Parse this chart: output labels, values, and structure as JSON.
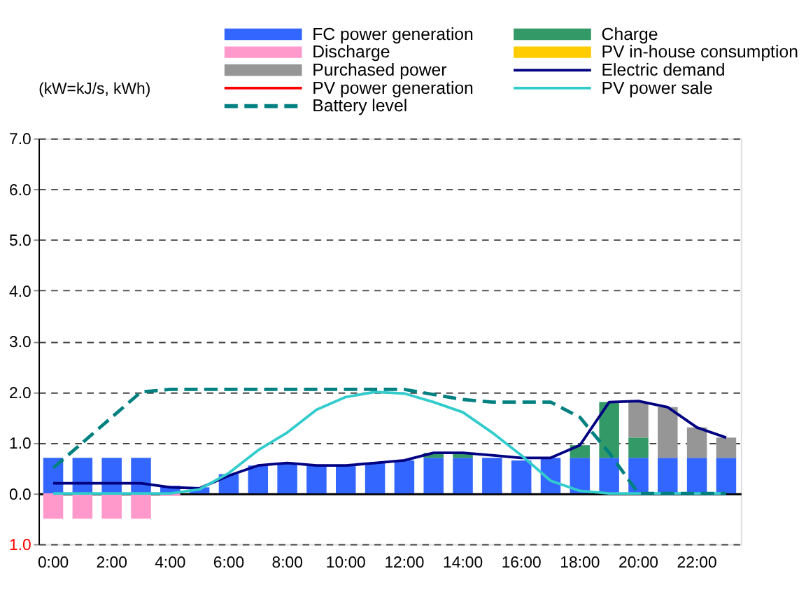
{
  "chart_data": {
    "type": "bar",
    "stacked": true,
    "ylabel": "(kW=kJ/s, kWh)",
    "legend": "top",
    "grid": "y",
    "categories": [
      "0:00",
      null,
      "2:00",
      null,
      "4:00",
      null,
      "6:00",
      null,
      "8:00",
      null,
      "10:00",
      null,
      "12:00",
      null,
      "14:00",
      null,
      "16:00",
      null,
      "18:00",
      null,
      "20:00",
      null,
      "22:00",
      null
    ],
    "ylim": [
      -1,
      7
    ],
    "yticks": [
      {
        "value": -1,
        "label": "1.0"
      },
      {
        "value": 0,
        "label": "0.0"
      },
      {
        "value": 1,
        "label": "1.0"
      },
      {
        "value": 2,
        "label": "2.0"
      },
      {
        "value": 3,
        "label": "3.0"
      },
      {
        "value": 4,
        "label": "4.0"
      },
      {
        "value": 5,
        "label": "5.0"
      },
      {
        "value": 6,
        "label": "6.0"
      },
      {
        "value": 7,
        "label": "7.0"
      }
    ],
    "series": [
      {
        "name": "FC power generation",
        "type": "bar",
        "color": "#3366ff",
        "values": [
          0.7,
          0.7,
          0.7,
          0.7,
          0.15,
          0.12,
          0.38,
          0.55,
          0.6,
          0.55,
          0.55,
          0.6,
          0.65,
          0.7,
          0.7,
          0.7,
          0.65,
          0.7,
          0.7,
          0.7,
          0.7,
          0.7,
          0.7,
          0.7
        ]
      },
      {
        "name": "Charge",
        "type": "bar",
        "color": "#339966",
        "values": [
          null,
          null,
          null,
          null,
          null,
          null,
          null,
          null,
          null,
          null,
          null,
          null,
          null,
          0.1,
          0.1,
          null,
          null,
          null,
          0.25,
          1.1,
          0.4,
          null,
          null,
          null
        ]
      },
      {
        "name": "Discharge",
        "type": "bar",
        "color": "#ff99cc",
        "values": [
          -0.5,
          -0.5,
          -0.5,
          -0.5,
          -0.05,
          null,
          null,
          null,
          null,
          null,
          null,
          null,
          null,
          null,
          null,
          null,
          null,
          null,
          null,
          null,
          null,
          null,
          null,
          null
        ]
      },
      {
        "name": "PV in-house consumption",
        "type": "bar",
        "color": "#ffcc00",
        "values": [
          null,
          null,
          null,
          null,
          null,
          null,
          null,
          null,
          null,
          null,
          null,
          null,
          null,
          null,
          null,
          null,
          null,
          null,
          null,
          null,
          null,
          null,
          null,
          null
        ]
      },
      {
        "name": "Purchased power",
        "type": "bar",
        "color": "#969696",
        "values": [
          null,
          null,
          null,
          null,
          null,
          null,
          null,
          null,
          null,
          null,
          null,
          null,
          null,
          null,
          null,
          null,
          null,
          null,
          null,
          null,
          0.7,
          1.0,
          0.6,
          0.4
        ]
      },
      {
        "name": "Electric demand",
        "type": "line",
        "color": "#000080",
        "line_style": "solid",
        "values": [
          0.2,
          0.2,
          0.2,
          0.2,
          0.12,
          0.1,
          0.35,
          0.55,
          0.6,
          0.55,
          0.55,
          0.6,
          0.65,
          0.8,
          0.8,
          0.75,
          0.7,
          0.7,
          0.95,
          1.8,
          1.82,
          1.7,
          1.3,
          1.1
        ]
      },
      {
        "name": "PV power generation",
        "type": "line",
        "color": "#ff0000",
        "line_style": "solid",
        "values": [
          null,
          null,
          null,
          null,
          null,
          null,
          null,
          null,
          null,
          null,
          null,
          null,
          null,
          null,
          null,
          null,
          null,
          null,
          null,
          null,
          null,
          null,
          null,
          null
        ]
      },
      {
        "name": "PV power sale",
        "type": "line",
        "color": "#33cccc",
        "line_style": "solid",
        "values": [
          0,
          0,
          0,
          0,
          0,
          0.08,
          0.4,
          0.85,
          1.2,
          1.65,
          1.9,
          2.0,
          1.97,
          1.8,
          1.6,
          1.2,
          0.75,
          0.25,
          0.05,
          0,
          0,
          0,
          0,
          0
        ]
      },
      {
        "name": "Battery level",
        "type": "line",
        "color": "#008080",
        "line_style": "dashed",
        "values": [
          0.5,
          1.0,
          1.5,
          2.0,
          2.05,
          2.05,
          2.05,
          2.05,
          2.05,
          2.05,
          2.05,
          2.05,
          2.05,
          1.95,
          1.85,
          1.8,
          1.8,
          1.8,
          1.5,
          0.8,
          0.0,
          0,
          0,
          0
        ]
      }
    ]
  }
}
